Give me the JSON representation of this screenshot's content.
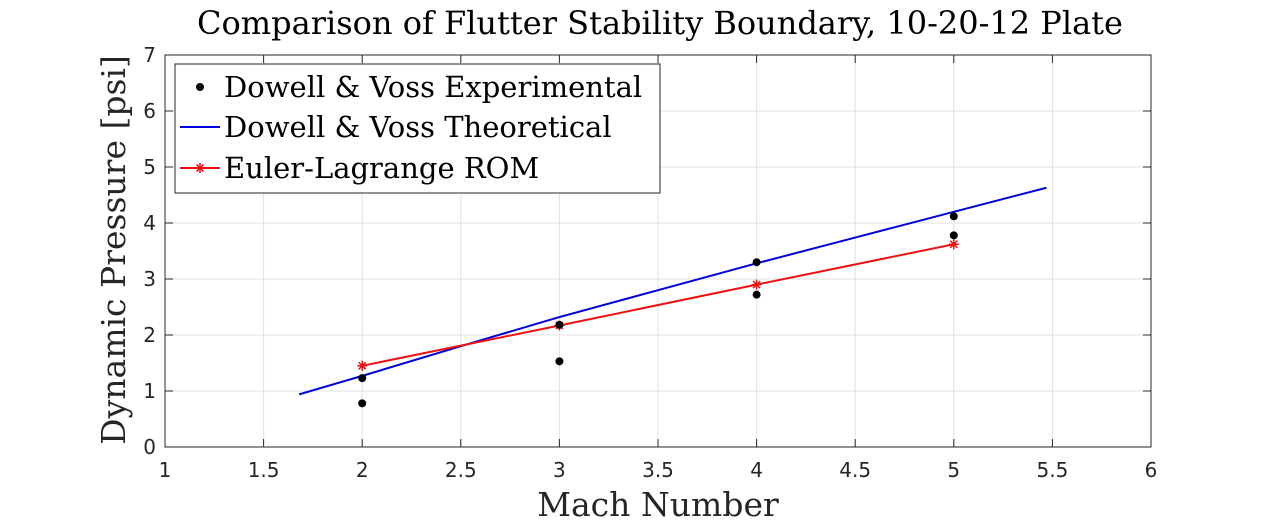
{
  "chart_data": {
    "type": "line",
    "title": "Comparison of Flutter Stability Boundary, 10-20-12 Plate",
    "xlabel": "Mach Number",
    "ylabel": "Dynamic Pressure [psi]",
    "xlim": [
      1,
      6
    ],
    "ylim": [
      0,
      7
    ],
    "xticks": [
      "1",
      "1.5",
      "2",
      "2.5",
      "3",
      "3.5",
      "4",
      "4.5",
      "5",
      "5.5",
      "6"
    ],
    "yticks": [
      "0",
      "1",
      "2",
      "3",
      "4",
      "5",
      "6",
      "7"
    ],
    "grid": true,
    "legend_position": "top-left",
    "series": [
      {
        "name": "Dowell & Voss Experimental",
        "style": "markers",
        "marker": "dot",
        "color": "#000000",
        "x": [
          2,
          2,
          3,
          3,
          4,
          4,
          5,
          5
        ],
        "y": [
          0.78,
          1.23,
          1.53,
          2.18,
          2.72,
          3.3,
          3.78,
          4.12
        ]
      },
      {
        "name": "Dowell & Voss Theoretical",
        "style": "line",
        "color": "#0000dd",
        "x": [
          1.68,
          2.0,
          2.5,
          3.0,
          3.5,
          4.0,
          4.5,
          5.0,
          5.47
        ],
        "y": [
          0.94,
          1.27,
          1.8,
          2.32,
          2.8,
          3.28,
          3.74,
          4.2,
          4.63
        ]
      },
      {
        "name": "Euler-Lagrange ROM",
        "style": "line-marker",
        "marker": "asterisk",
        "color": "#ee1111",
        "x": [
          2,
          3,
          4,
          5
        ],
        "y": [
          1.45,
          2.17,
          2.9,
          3.62
        ]
      }
    ]
  }
}
